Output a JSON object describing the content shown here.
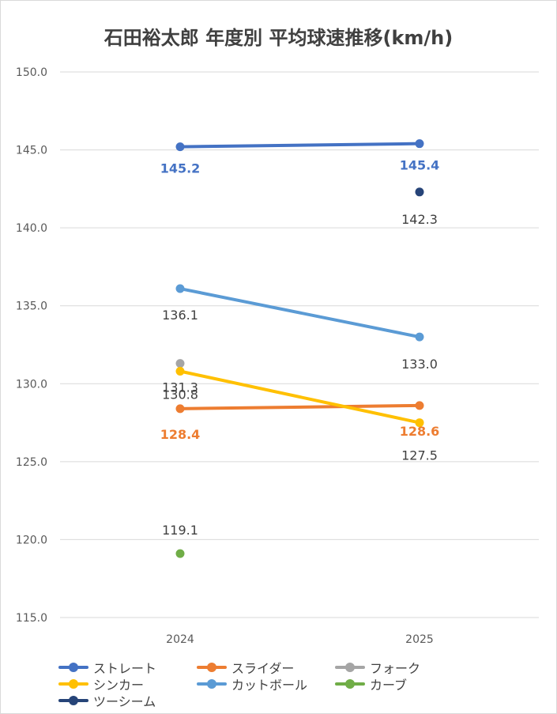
{
  "chart_data": {
    "type": "line",
    "title": "石田裕太郎 年度別 平均球速推移(km/h)",
    "categories": [
      "2024",
      "2025"
    ],
    "ylim": [
      115.0,
      150.0
    ],
    "yticks": [
      "115.0",
      "120.0",
      "125.0",
      "130.0",
      "135.0",
      "140.0",
      "145.0",
      "150.0"
    ],
    "grid": true,
    "legend_position": "bottom",
    "series": [
      {
        "name": "ストレート",
        "color": "#4472c4",
        "values": [
          145.2,
          145.4
        ],
        "labels": [
          "145.2",
          "145.4"
        ],
        "label_color": "#4472c4",
        "label_bold": true
      },
      {
        "name": "スライダー",
        "color": "#ed7d31",
        "values": [
          128.4,
          128.6
        ],
        "labels": [
          "128.4",
          "128.6"
        ],
        "label_color": "#ed7d31",
        "label_bold": true
      },
      {
        "name": "フォーク",
        "color": "#a5a5a5",
        "values": [
          131.3,
          null
        ],
        "labels": [
          "131.3",
          null
        ],
        "label_color": "#404040",
        "label_bold": false
      },
      {
        "name": "シンカー",
        "color": "#ffc000",
        "values": [
          130.8,
          127.5
        ],
        "labels": [
          "130.8",
          "127.5"
        ],
        "label_color": "#404040",
        "label_bold": false
      },
      {
        "name": "カットボール",
        "color": "#5b9bd5",
        "values": [
          136.1,
          133.0
        ],
        "labels": [
          "136.1",
          "133.0"
        ],
        "label_color": "#404040",
        "label_bold": false
      },
      {
        "name": "カーブ",
        "color": "#70ad47",
        "values": [
          119.1,
          null
        ],
        "labels": [
          "119.1",
          null
        ],
        "label_color": "#404040",
        "label_bold": false
      },
      {
        "name": "ツーシーム",
        "color": "#264478",
        "values": [
          null,
          142.3
        ],
        "labels": [
          null,
          "142.3"
        ],
        "label_color": "#404040",
        "label_bold": false
      }
    ]
  }
}
